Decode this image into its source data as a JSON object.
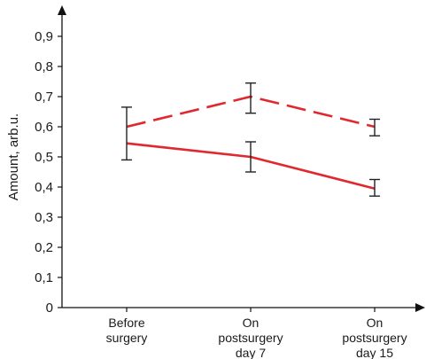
{
  "chart_data": {
    "type": "line",
    "xlabel": "",
    "ylabel": "Amount, arb.u.",
    "ylim": [
      0,
      0.9
    ],
    "y_ticks": [
      0,
      0.1,
      0.2,
      0.3,
      0.4,
      0.5,
      0.6,
      0.7,
      0.8,
      0.9
    ],
    "y_tick_labels": [
      "0",
      "0,1",
      "0,2",
      "0,3",
      "0,4",
      "0,5",
      "0,6",
      "0,7",
      "0,8",
      "0,9"
    ],
    "categories": [
      [
        "Before",
        "surgery"
      ],
      [
        "On",
        "postsurgery",
        "day 7"
      ],
      [
        "On",
        "postsurgery",
        "day 15"
      ]
    ],
    "series": [
      {
        "style": "dashed",
        "color": "#e0282e",
        "values": [
          0.6,
          0.7,
          0.6
        ],
        "error_low": [
          0.49,
          0.645,
          0.57
        ],
        "error_high": [
          0.665,
          0.745,
          0.625
        ]
      },
      {
        "style": "solid",
        "color": "#e0282e",
        "values": [
          0.545,
          0.5,
          0.395
        ],
        "error_low": [
          null,
          0.45,
          0.37
        ],
        "error_high": [
          null,
          0.55,
          0.425
        ]
      }
    ],
    "legend": "none",
    "grid": false
  }
}
